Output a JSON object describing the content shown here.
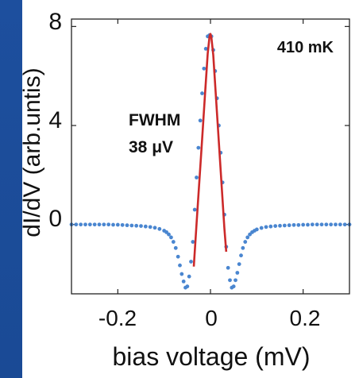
{
  "chart_data": {
    "type": "scatter",
    "xlabel": "bias voltage (mV)",
    "ylabel": "dI/dV (arb.untis)",
    "xlim": [
      -0.3,
      0.3
    ],
    "ylim": [
      -2.8,
      8.3
    ],
    "xticks": [
      -0.2,
      0,
      0.2
    ],
    "xtick_labels": [
      "-0.2",
      "0",
      "0.2"
    ],
    "yticks": [
      0,
      4,
      8
    ],
    "ytick_labels": [
      "0",
      "4",
      "8"
    ],
    "grid": false,
    "annotations": [
      {
        "text": "410 mK"
      },
      {
        "text": "FWHM"
      },
      {
        "text": "38 μV"
      }
    ],
    "series": [
      {
        "kind": "scatter",
        "color": "#4a86d0",
        "x": [
          -0.3,
          -0.29,
          -0.28,
          -0.27,
          -0.26,
          -0.25,
          -0.24,
          -0.23,
          -0.22,
          -0.21,
          -0.2,
          -0.19,
          -0.18,
          -0.17,
          -0.16,
          -0.15,
          -0.14,
          -0.13,
          -0.12,
          -0.11,
          -0.1,
          -0.095,
          -0.09,
          -0.085,
          -0.08,
          -0.075,
          -0.07,
          -0.066,
          -0.062,
          -0.058,
          -0.054,
          -0.05,
          -0.046,
          -0.042,
          -0.038,
          -0.034,
          -0.03,
          -0.026,
          -0.022,
          -0.018,
          -0.014,
          -0.01,
          -0.006,
          -0.002,
          0.002,
          0.006,
          0.01,
          0.014,
          0.018,
          0.022,
          0.026,
          0.03,
          0.034,
          0.038,
          0.042,
          0.046,
          0.05,
          0.054,
          0.058,
          0.062,
          0.066,
          0.07,
          0.075,
          0.08,
          0.085,
          0.09,
          0.095,
          0.1,
          0.11,
          0.12,
          0.13,
          0.14,
          0.15,
          0.16,
          0.17,
          0.18,
          0.19,
          0.2,
          0.21,
          0.22,
          0.23,
          0.24,
          0.25,
          0.26,
          0.27,
          0.28,
          0.29,
          0.3
        ],
        "y": [
          0.0,
          0.0,
          0.0,
          0.0,
          0.0,
          0.0,
          0.0,
          0.0,
          0.0,
          -0.01,
          -0.01,
          -0.02,
          -0.03,
          -0.04,
          -0.05,
          -0.06,
          -0.08,
          -0.1,
          -0.13,
          -0.18,
          -0.25,
          -0.31,
          -0.4,
          -0.52,
          -0.7,
          -0.95,
          -1.3,
          -1.65,
          -2.0,
          -2.3,
          -2.55,
          -2.5,
          -2.1,
          -1.5,
          -0.7,
          0.6,
          1.9,
          3.1,
          4.2,
          5.3,
          6.3,
          7.1,
          7.6,
          7.65,
          7.6,
          7.05,
          6.2,
          5.1,
          4.0,
          2.9,
          1.7,
          0.4,
          -0.9,
          -1.75,
          -2.25,
          -2.55,
          -2.5,
          -2.25,
          -1.95,
          -1.6,
          -1.25,
          -0.95,
          -0.7,
          -0.52,
          -0.4,
          -0.31,
          -0.25,
          -0.2,
          -0.14,
          -0.1,
          -0.08,
          -0.06,
          -0.05,
          -0.04,
          -0.03,
          -0.02,
          -0.02,
          -0.01,
          -0.01,
          0.0,
          0.0,
          0.0,
          0.0,
          0.0,
          0.0,
          0.0,
          0.0,
          0.0
        ]
      },
      {
        "kind": "line",
        "color": "#cc2a2a",
        "x": [
          -0.036,
          -0.03,
          -0.024,
          -0.018,
          -0.012,
          -0.006,
          -0.002,
          0.0,
          0.002,
          0.006,
          0.012,
          0.018,
          0.024,
          0.03,
          0.034
        ],
        "y": [
          -1.7,
          0.05,
          1.75,
          3.45,
          5.2,
          6.9,
          7.6,
          7.7,
          7.55,
          6.85,
          5.1,
          3.35,
          1.6,
          -0.15,
          -1.1
        ]
      }
    ]
  }
}
